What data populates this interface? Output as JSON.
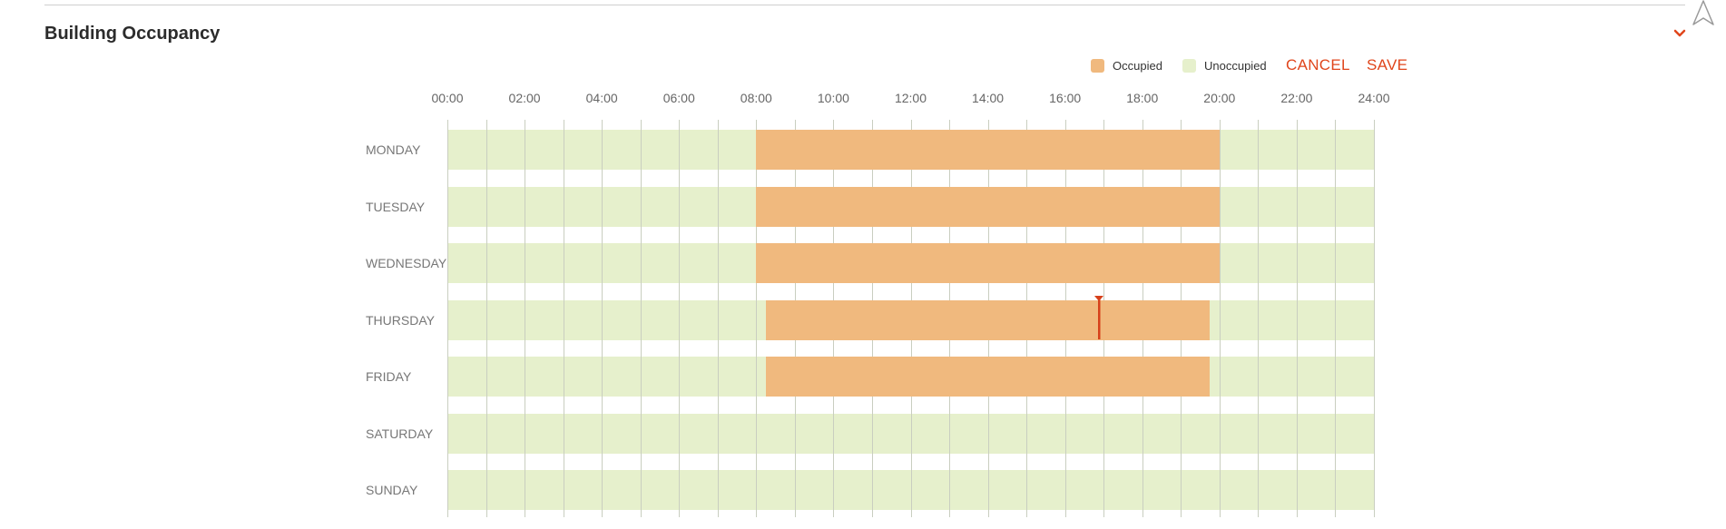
{
  "header": {
    "title": "Building Occupancy",
    "collapse_icon": "chevron-down-icon",
    "nav_icon": "navigation-arrow-icon"
  },
  "legend": {
    "occupied_label": "Occupied",
    "unoccupied_label": "Unoccupied",
    "occupied_color": "#f0b97e",
    "unoccupied_color": "#e6f0cc"
  },
  "actions": {
    "cancel_label": "CANCEL",
    "save_label": "SAVE",
    "accent_color": "#e0461c"
  },
  "schedule": {
    "hour_labels": [
      "00:00",
      "02:00",
      "04:00",
      "06:00",
      "08:00",
      "10:00",
      "12:00",
      "14:00",
      "16:00",
      "18:00",
      "20:00",
      "22:00",
      "24:00"
    ],
    "days": [
      {
        "label": "MONDAY",
        "occupied": {
          "start": "08:00",
          "end": "20:00"
        }
      },
      {
        "label": "TUESDAY",
        "occupied": {
          "start": "08:00",
          "end": "20:00"
        }
      },
      {
        "label": "WEDNESDAY",
        "occupied": {
          "start": "08:00",
          "end": "20:00"
        }
      },
      {
        "label": "THURSDAY",
        "occupied": {
          "start": "08:15",
          "end": "19:45"
        },
        "marker": "16:52"
      },
      {
        "label": "FRIDAY",
        "occupied": {
          "start": "08:15",
          "end": "19:45"
        }
      },
      {
        "label": "SATURDAY",
        "occupied": null
      },
      {
        "label": "SUNDAY",
        "occupied": null
      }
    ]
  }
}
